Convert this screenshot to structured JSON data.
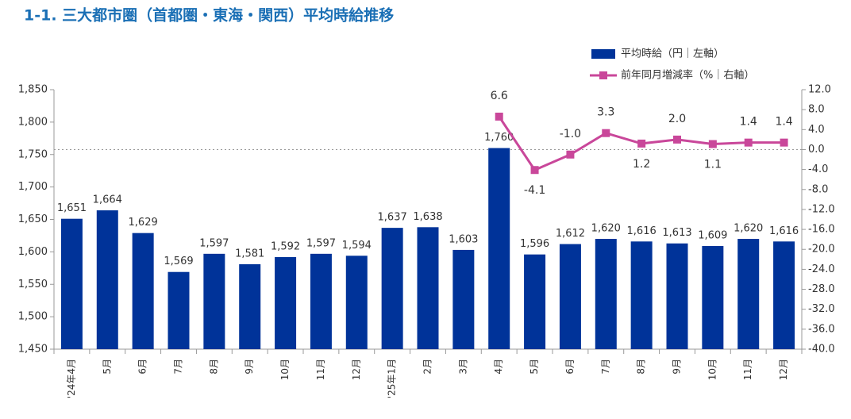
{
  "chart_data": {
    "type": "bar_line",
    "title": "1-1. 三大都市圏（首都圏・東海・関西）平均時給推移",
    "categories": [
      "'24年4月",
      "5月",
      "6月",
      "7月",
      "8月",
      "9月",
      "10月",
      "11月",
      "12月",
      "'25年1月",
      "2月",
      "3月",
      "4月",
      "5月",
      "6月",
      "7月",
      "8月",
      "9月",
      "10月",
      "11月",
      "12月"
    ],
    "series": [
      {
        "name": "平均時給（円｜左軸）",
        "type": "bar",
        "color": "#003399",
        "values": [
          1651,
          1664,
          1629,
          1569,
          1597,
          1581,
          1592,
          1597,
          1594,
          1637,
          1638,
          1603,
          1760,
          1596,
          1612,
          1620,
          1616,
          1613,
          1609,
          1620,
          1616
        ],
        "value_labels": [
          "1,651",
          "1,664",
          "1,629",
          "1,569",
          "1,597",
          "1,581",
          "1,592",
          "1,597",
          "1,594",
          "1,637",
          "1,638",
          "1,603",
          "1,760",
          "1,596",
          "1,612",
          "1,620",
          "1,616",
          "1,613",
          "1,609",
          "1,620",
          "1,616"
        ]
      },
      {
        "name": "前年同月増減率（%｜右軸）",
        "type": "line",
        "axis": "y2",
        "color": "#c9479a",
        "values": [
          null,
          null,
          null,
          null,
          null,
          null,
          null,
          null,
          null,
          null,
          null,
          null,
          6.6,
          -4.1,
          -1.0,
          3.3,
          1.2,
          2.0,
          1.1,
          1.4,
          1.4
        ],
        "value_labels": [
          null,
          null,
          null,
          null,
          null,
          null,
          null,
          null,
          null,
          null,
          null,
          null,
          "6.6",
          "-4.1",
          "-1.0",
          "3.3",
          "1.2",
          "2.0",
          "1.1",
          "1.4",
          "1.4"
        ]
      }
    ],
    "ylim": [
      1450,
      1850
    ],
    "yticks": [
      {
        "value": 1450,
        "label": "1,450"
      },
      {
        "value": 1500,
        "label": "1,500"
      },
      {
        "value": 1550,
        "label": "1,550"
      },
      {
        "value": 1600,
        "label": "1,600"
      },
      {
        "value": 1650,
        "label": "1,650"
      },
      {
        "value": 1700,
        "label": "1,700"
      },
      {
        "value": 1750,
        "label": "1,750"
      },
      {
        "value": 1800,
        "label": "1,800"
      },
      {
        "value": 1850,
        "label": "1,850"
      }
    ],
    "y2lim": [
      -40,
      12
    ],
    "y2ticks": [
      {
        "value": -40,
        "label": "-40.0"
      },
      {
        "value": -36,
        "label": "-36.0"
      },
      {
        "value": -32,
        "label": "-32.0"
      },
      {
        "value": -28,
        "label": "-28.0"
      },
      {
        "value": -24,
        "label": "-24.0"
      },
      {
        "value": -20,
        "label": "-20.0"
      },
      {
        "value": -16,
        "label": "-16.0"
      },
      {
        "value": -12,
        "label": "-12.0"
      },
      {
        "value": -8,
        "label": "-8.0"
      },
      {
        "value": -4,
        "label": "-4.0"
      },
      {
        "value": 0,
        "label": "0.0"
      },
      {
        "value": 4,
        "label": "4.0"
      },
      {
        "value": 8,
        "label": "8.0"
      },
      {
        "value": 12,
        "label": "12.0"
      }
    ],
    "zero_line": true,
    "legend": "top-right"
  }
}
